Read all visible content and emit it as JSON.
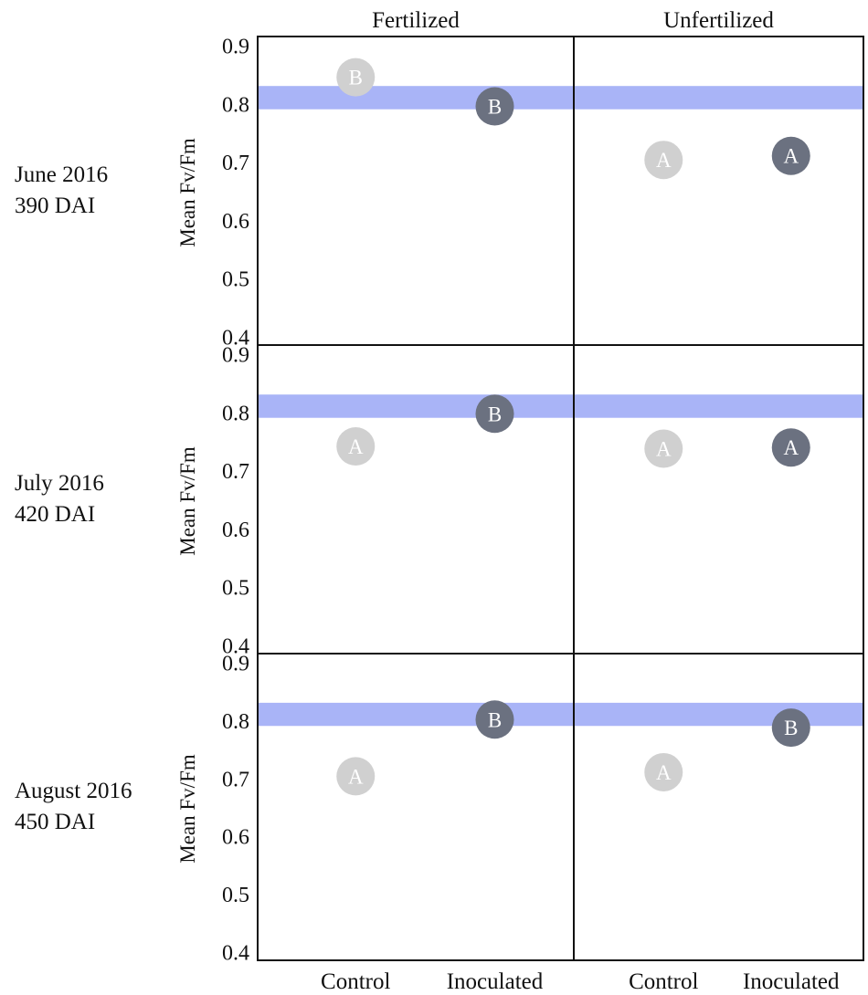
{
  "chart_data": {
    "type": "scatter",
    "column_headers": [
      "Fertilized",
      "Unfertilized"
    ],
    "categories": [
      "Control",
      "Inoculated"
    ],
    "ylabel": "Mean Fv/Fm",
    "ylim": [
      0.385,
      0.915
    ],
    "yticks": [
      0.9,
      0.8,
      0.7,
      0.6,
      0.5,
      0.4
    ],
    "reference_band": [
      0.79,
      0.83
    ],
    "colors": {
      "control": "#d0d0d0",
      "inoculated": "#6b7180",
      "band": "#a9b4f7",
      "control_letter": "#ffffff",
      "inoculated_letter": "#ffffff"
    },
    "rows": [
      {
        "label_line1": "June 2016",
        "label_line2": "390 DAI",
        "panels": [
          {
            "control": {
              "value": 0.845,
              "letter": "B"
            },
            "inoculated": {
              "value": 0.795,
              "letter": "B"
            }
          },
          {
            "control": {
              "value": 0.703,
              "letter": "A"
            },
            "inoculated": {
              "value": 0.71,
              "letter": "A"
            }
          }
        ]
      },
      {
        "label_line1": "July 2016",
        "label_line2": "420 DAI",
        "panels": [
          {
            "control": {
              "value": 0.741,
              "letter": "A"
            },
            "inoculated": {
              "value": 0.797,
              "letter": "B"
            }
          },
          {
            "control": {
              "value": 0.737,
              "letter": "A"
            },
            "inoculated": {
              "value": 0.739,
              "letter": "A"
            }
          }
        ]
      },
      {
        "label_line1": "August 2016",
        "label_line2": "450 DAI",
        "panels": [
          {
            "control": {
              "value": 0.703,
              "letter": "A"
            },
            "inoculated": {
              "value": 0.801,
              "letter": "B"
            }
          },
          {
            "control": {
              "value": 0.71,
              "letter": "A"
            },
            "inoculated": {
              "value": 0.787,
              "letter": "B"
            }
          }
        ]
      }
    ]
  }
}
